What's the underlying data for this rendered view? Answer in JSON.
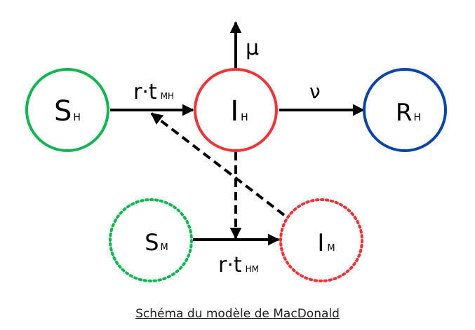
{
  "nodes": {
    "sh": {
      "main": "S",
      "sub": "H",
      "color": "#12b551",
      "style": "solid"
    },
    "ih": {
      "main": "I",
      "sub": "H",
      "color": "#ee3436",
      "style": "solid"
    },
    "rh": {
      "main": "R",
      "sub": "H",
      "color": "#0844a9",
      "style": "solid"
    },
    "sm": {
      "main": "S",
      "sub": "M",
      "color": "#12b551",
      "style": "dotted"
    },
    "im": {
      "main": "I",
      "sub": "M",
      "color": "#ee3436",
      "style": "dotted"
    }
  },
  "edges": {
    "sh_ih": {
      "main": "r·t",
      "sub": "MH"
    },
    "ih_rh": {
      "main": "ν"
    },
    "ih_mu": {
      "main": "μ"
    },
    "sm_im": {
      "main": "r·t",
      "sub": "HM"
    }
  },
  "caption": "Schéma du modèle de MacDonald"
}
